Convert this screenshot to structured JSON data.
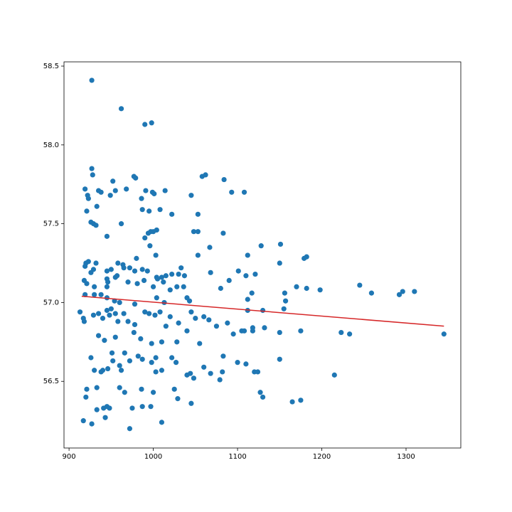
{
  "chart_data": {
    "type": "scatter",
    "color": "#1f77b4",
    "x": [
      927,
      962,
      990,
      998,
      927,
      928,
      919,
      922,
      923,
      935,
      938,
      952,
      955,
      949,
      968,
      977,
      979,
      986,
      991,
      999,
      1001,
      1014,
      1045,
      1058,
      1062,
      1084,
      1093,
      1108,
      921,
      933,
      926,
      929,
      932,
      962,
      987,
      995,
      1008,
      1022,
      1053,
      945,
      997,
      994,
      1004,
      1000,
      990,
      996,
      1048,
      1053,
      1083,
      1067,
      1128,
      1151,
      920,
      923,
      919,
      932,
      929,
      926,
      945,
      950,
      958,
      964,
      965,
      972,
      978,
      980,
      987,
      993,
      1003,
      1004,
      1010,
      1015,
      1022,
      1030,
      1033,
      1037,
      1053,
      1068,
      1101,
      1112,
      1110,
      1121,
      1150,
      1179,
      1182,
      918,
      921,
      930,
      945,
      946,
      945,
      955,
      957,
      970,
      981,
      989,
      1000,
      1005,
      1012,
      1020,
      1028,
      1036,
      1040,
      1043,
      1080,
      1090,
      1117,
      1112,
      1156,
      1170,
      1182,
      1198,
      1245,
      1259,
      1292,
      1296,
      1310,
      919,
      930,
      938,
      945,
      950,
      954,
      960,
      978,
      1004,
      1013,
      1157,
      913,
      917,
      918,
      929,
      935,
      940,
      945,
      948,
      955,
      958,
      965,
      970,
      978,
      977,
      990,
      995,
      1002,
      1008,
      1015,
      1020,
      1030,
      1045,
      1050,
      1060,
      1066,
      1075,
      1095,
      1105,
      1112,
      1118,
      1130,
      1132,
      1150,
      1175,
      1223,
      1233,
      1345,
      1155,
      1118,
      1108,
      935,
      942,
      955,
      985,
      998,
      1010,
      1028,
      1040,
      1055,
      1088,
      926,
      930,
      938,
      946,
      951,
      952,
      960,
      966,
      972,
      982,
      987,
      998,
      1003,
      1010,
      1022,
      1027,
      1040,
      1048,
      1060,
      1068,
      1079,
      1082,
      1083,
      1100,
      1110,
      1120,
      1124,
      1150,
      1215,
      940,
      962,
      1003,
      1044,
      920,
      921,
      933,
      941,
      945,
      948,
      960,
      966,
      972,
      975,
      986,
      987,
      997,
      1000,
      1010,
      1025,
      1029,
      1045,
      1127,
      1130,
      1165,
      1175,
      917,
      927,
      933,
      943
    ],
    "y": [
      58.41,
      58.23,
      58.13,
      58.14,
      57.85,
      57.81,
      57.72,
      57.68,
      57.66,
      57.71,
      57.7,
      57.77,
      57.71,
      57.68,
      57.72,
      57.8,
      57.79,
      57.66,
      57.71,
      57.7,
      57.69,
      57.71,
      57.68,
      57.8,
      57.81,
      57.78,
      57.7,
      57.7,
      57.58,
      57.61,
      57.51,
      57.5,
      57.49,
      57.5,
      57.59,
      57.58,
      57.59,
      57.56,
      57.56,
      57.42,
      57.45,
      57.44,
      57.46,
      57.45,
      57.41,
      57.36,
      57.45,
      57.45,
      57.44,
      57.35,
      57.36,
      57.37,
      57.25,
      57.26,
      57.23,
      57.25,
      57.21,
      57.19,
      57.2,
      57.21,
      57.25,
      57.24,
      57.22,
      57.22,
      57.2,
      57.28,
      57.21,
      57.2,
      57.3,
      57.16,
      57.16,
      57.17,
      57.18,
      57.18,
      57.22,
      57.17,
      57.3,
      57.19,
      57.2,
      57.3,
      57.17,
      57.18,
      57.25,
      57.28,
      57.29,
      57.14,
      57.12,
      57.1,
      57.15,
      57.13,
      57.1,
      57.16,
      57.17,
      57.13,
      57.12,
      57.14,
      57.1,
      57.15,
      57.13,
      57.08,
      57.1,
      57.1,
      57.03,
      57.01,
      57.09,
      57.14,
      57.06,
      57.02,
      57.06,
      57.1,
      57.09,
      57.08,
      57.11,
      57.06,
      57.05,
      57.07,
      57.07,
      57.05,
      57.05,
      57.05,
      57.03,
      56.96,
      57.01,
      57.0,
      56.99,
      57.03,
      57.0,
      57.01,
      56.94,
      56.9,
      56.88,
      56.92,
      56.93,
      56.9,
      56.95,
      56.92,
      56.93,
      56.88,
      56.93,
      56.88,
      56.86,
      56.81,
      56.94,
      56.93,
      56.92,
      56.94,
      56.85,
      56.91,
      56.87,
      56.94,
      56.9,
      56.91,
      56.89,
      56.85,
      56.8,
      56.82,
      56.95,
      56.84,
      56.95,
      56.84,
      56.81,
      56.82,
      56.81,
      56.8,
      56.8,
      56.96,
      56.82,
      56.82,
      56.79,
      56.76,
      56.78,
      56.77,
      56.74,
      56.75,
      56.75,
      56.82,
      56.74,
      56.87,
      56.65,
      56.57,
      56.56,
      56.58,
      56.68,
      56.63,
      56.6,
      56.68,
      56.63,
      56.66,
      56.64,
      56.62,
      56.65,
      56.57,
      56.65,
      56.62,
      56.54,
      56.52,
      56.59,
      56.55,
      56.51,
      56.56,
      56.66,
      56.62,
      56.61,
      56.56,
      56.56,
      56.64,
      56.54,
      56.57,
      56.57,
      56.56,
      56.55,
      56.4,
      56.45,
      56.46,
      56.33,
      56.34,
      56.33,
      56.46,
      56.43,
      56.2,
      56.33,
      56.45,
      56.34,
      56.34,
      56.43,
      56.24,
      56.45,
      56.39,
      56.36,
      56.43,
      56.4,
      56.37,
      56.38,
      56.25,
      56.23,
      56.32,
      56.27
    ],
    "trendline": {
      "x": [
        915,
        1345
      ],
      "y": [
        57.04,
        56.85
      ],
      "color": "#d62728"
    },
    "xlim": [
      894,
      1365
    ],
    "ylim": [
      56.077,
      58.527
    ],
    "xticks": [
      900,
      1000,
      1100,
      1200,
      1300
    ],
    "yticks": [
      56.5,
      {
        "value": 57.0,
        "label": "57.0"
      },
      57.5,
      {
        "value": 58.0,
        "label": "58.0"
      },
      58.5
    ]
  }
}
